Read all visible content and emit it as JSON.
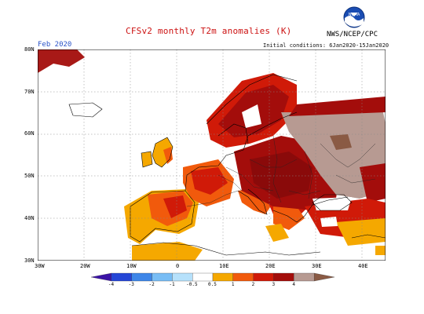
{
  "header": {
    "title": "CFSv2 monthly T2m anomalies (K)",
    "org": "NWS/NCEP/CPC",
    "initial_conditions": "Initial conditions: 6Jan2020-15Jan2020",
    "month": "Feb 2020",
    "logo_icon": "noaa-logo-icon"
  },
  "map": {
    "lat_labels": [
      "80N",
      "70N",
      "60N",
      "50N",
      "40N",
      "30N"
    ],
    "lon_labels": [
      "30W",
      "20W",
      "10W",
      "0",
      "10E",
      "20E",
      "30E",
      "40E"
    ]
  },
  "colorbar": {
    "labels": [
      "-4",
      "-3",
      "-2",
      "-1",
      "-0.5",
      "0.5",
      "1",
      "2",
      "3",
      "4"
    ],
    "colors": [
      "#3b13a6",
      "#2546d6",
      "#3e86e8",
      "#78bdf5",
      "#b6e1fb",
      "#ffffff",
      "#f5a800",
      "#f15a0c",
      "#d01a08",
      "#a30d0b",
      "#b79a92",
      "#8a5a44"
    ]
  }
}
